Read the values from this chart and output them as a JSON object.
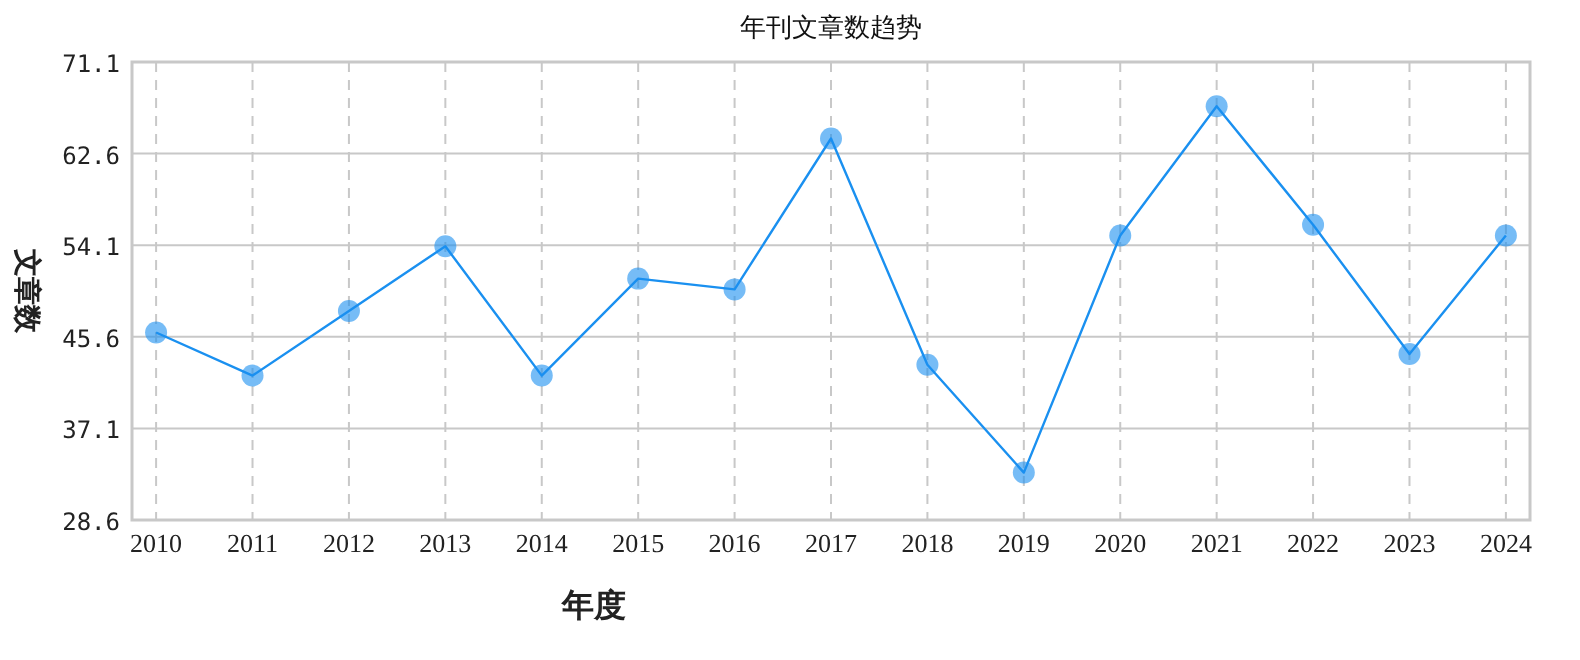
{
  "chart_data": {
    "type": "line",
    "title": "年刊文章数趋势",
    "xlabel": "年度",
    "ylabel": "文章数",
    "categories": [
      "2010",
      "2011",
      "2012",
      "2013",
      "2014",
      "2015",
      "2016",
      "2017",
      "2018",
      "2019",
      "2020",
      "2021",
      "2022",
      "2023",
      "2024"
    ],
    "series": [
      {
        "color": "#1a90f0",
        "values": [
          46,
          42,
          48,
          54,
          42,
          51,
          50,
          64,
          43,
          33,
          55,
          67,
          56,
          44,
          55
        ]
      }
    ],
    "ylim": [
      28.6,
      71.1
    ],
    "yticks": [
      28.6,
      37.1,
      45.6,
      54.1,
      62.6,
      71.1
    ],
    "grid": true,
    "marker": "circle",
    "line_style": "solid"
  }
}
